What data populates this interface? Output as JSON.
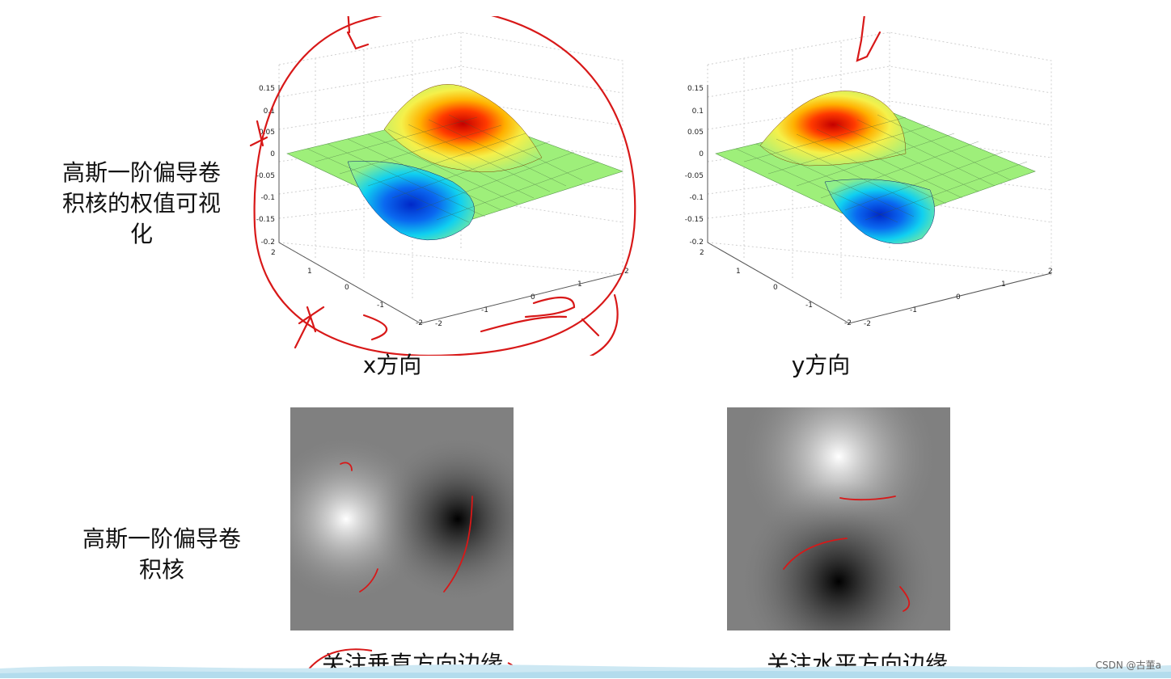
{
  "slide": {
    "row1_label": "高斯一阶偏导卷积核的权值可视化",
    "row1_label_lines": [
      "高斯一阶偏导卷",
      "积核的权值可视",
      "化"
    ],
    "row2_label_lines": [
      "高斯一阶偏导卷",
      "积核"
    ],
    "x_direction": "x方向",
    "y_direction": "y方向",
    "vertical_edge": "关注垂直方向边缘",
    "horizontal_edge": "关注水平方向边缘"
  },
  "plots": {
    "x": {
      "z_ticks": [
        "0.15",
        "0.1",
        "0.05",
        "0",
        "-0.05",
        "-0.1",
        "-0.15",
        "-0.2"
      ],
      "left_ticks": [
        "2",
        "1",
        "0",
        "-1",
        "-2"
      ],
      "right_ticks": [
        "-2",
        "-1",
        "0",
        "1",
        "2"
      ]
    },
    "y": {
      "z_ticks": [
        "0.15",
        "0.1",
        "0.05",
        "0",
        "-0.05",
        "-0.1",
        "-0.15",
        "-0.2"
      ],
      "left_ticks": [
        "2",
        "1",
        "0",
        "-1",
        "-2"
      ],
      "right_ticks": [
        "-2",
        "-1",
        "0",
        "1",
        "2"
      ]
    }
  },
  "colors": {
    "annotation": "#d81818",
    "band": "#bfe3f2"
  },
  "watermark": "CSDN @古董a"
}
